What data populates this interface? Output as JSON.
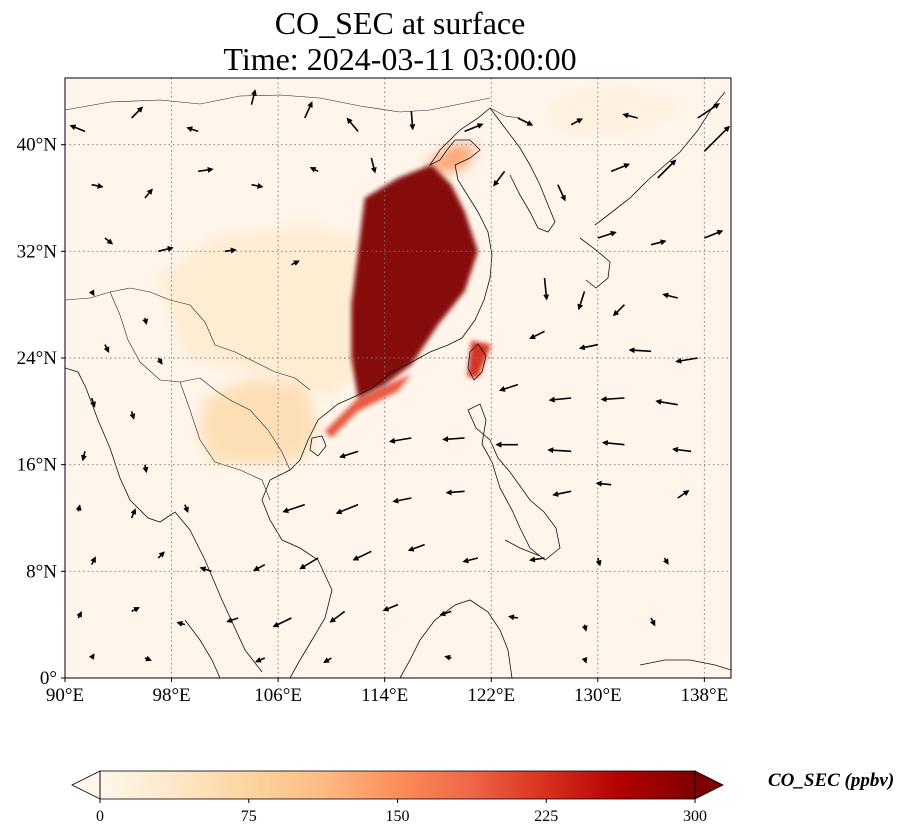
{
  "title": {
    "line1": "CO_SEC at surface",
    "line2": "Time: 2024-03-11 03:00:00"
  },
  "map": {
    "lon_range": [
      90,
      140
    ],
    "lat_range": [
      0,
      45
    ],
    "lon_ticks": [
      {
        "value": 90,
        "label": "90°E"
      },
      {
        "value": 98,
        "label": "98°E"
      },
      {
        "value": 106,
        "label": "106°E"
      },
      {
        "value": 114,
        "label": "114°E"
      },
      {
        "value": 122,
        "label": "122°E"
      },
      {
        "value": 130,
        "label": "130°E"
      },
      {
        "value": 138,
        "label": "138°E"
      }
    ],
    "lat_ticks": [
      {
        "value": 0,
        "label": "0°"
      },
      {
        "value": 8,
        "label": "8°N"
      },
      {
        "value": 16,
        "label": "16°N"
      },
      {
        "value": 24,
        "label": "24°N"
      },
      {
        "value": 32,
        "label": "32°N"
      },
      {
        "value": 40,
        "label": "40°N"
      }
    ],
    "gridlines": "dotted",
    "field_background": "#fff5eb"
  },
  "colorbar": {
    "label": "CO_SEC (ppbv)",
    "ticks": [
      {
        "value": 0,
        "label": "0"
      },
      {
        "value": 75,
        "label": "75"
      },
      {
        "value": 150,
        "label": "150"
      },
      {
        "value": 225,
        "label": "225"
      },
      {
        "value": 300,
        "label": "300"
      }
    ],
    "range": [
      0,
      300
    ],
    "extend": "both",
    "colormap": "OrRd",
    "colors": [
      "#fff7ec",
      "#fee8c8",
      "#fdd49e",
      "#fdbb84",
      "#fc8d59",
      "#ef6548",
      "#d7301f",
      "#b30000",
      "#7f0000"
    ]
  },
  "plumes": [
    {
      "name": "east-china-core",
      "value": 300,
      "points": [
        [
          112.5,
          36
        ],
        [
          115,
          37.5
        ],
        [
          117.5,
          38.5
        ],
        [
          119,
          37
        ],
        [
          120,
          35
        ],
        [
          121,
          32
        ],
        [
          120,
          29
        ],
        [
          118,
          26.5
        ],
        [
          116,
          23.5
        ],
        [
          114,
          22
        ],
        [
          112,
          21
        ],
        [
          111.5,
          24
        ],
        [
          111.5,
          28
        ],
        [
          112,
          32
        ]
      ]
    },
    {
      "name": "taiwan",
      "value": 230,
      "points": [
        [
          120.5,
          25.3
        ],
        [
          122,
          25
        ],
        [
          121,
          22.5
        ],
        [
          120.2,
          22.6
        ]
      ]
    },
    {
      "name": "north-plume",
      "value": 140,
      "points": [
        [
          117,
          38.5
        ],
        [
          119,
          40
        ],
        [
          121,
          40
        ],
        [
          120,
          38.2
        ],
        [
          118,
          37.8
        ]
      ]
    },
    {
      "name": "south-coast",
      "value": 200,
      "points": [
        [
          109.5,
          18.5
        ],
        [
          112,
          21
        ],
        [
          116,
          22.8
        ],
        [
          115,
          21.5
        ],
        [
          112,
          20
        ],
        [
          110,
          18
        ]
      ]
    },
    {
      "name": "indochina",
      "value": 60,
      "points": [
        [
          100.5,
          21
        ],
        [
          104,
          22.5
        ],
        [
          108,
          22
        ],
        [
          109,
          19
        ],
        [
          108,
          16.5
        ],
        [
          105,
          16
        ],
        [
          101,
          16.2
        ],
        [
          100,
          18.5
        ]
      ]
    },
    {
      "name": "south-china",
      "value": 30,
      "points": [
        [
          97,
          30
        ],
        [
          101,
          33
        ],
        [
          108,
          34
        ],
        [
          112,
          33
        ],
        [
          113,
          24
        ],
        [
          110,
          21
        ],
        [
          104,
          23
        ],
        [
          99,
          24
        ]
      ]
    },
    {
      "name": "japan-sea",
      "value": 15,
      "points": [
        [
          126,
          43
        ],
        [
          130,
          44.5
        ],
        [
          137,
          43
        ],
        [
          133,
          41
        ],
        [
          127,
          41
        ]
      ]
    }
  ],
  "wind_vectors": [
    {
      "lon": 91.5,
      "lat": 41,
      "u": -2.0,
      "v": 0.8
    },
    {
      "lon": 95,
      "lat": 42,
      "u": 1.5,
      "v": 1.5
    },
    {
      "lon": 100,
      "lat": 41,
      "u": -1.5,
      "v": 0.5
    },
    {
      "lon": 104,
      "lat": 43,
      "u": 0.5,
      "v": 2.0
    },
    {
      "lon": 108,
      "lat": 42,
      "u": 1.0,
      "v": 2.2
    },
    {
      "lon": 112,
      "lat": 41,
      "u": -1.5,
      "v": 1.8
    },
    {
      "lon": 116,
      "lat": 42.5,
      "u": 0.2,
      "v": -2.5
    },
    {
      "lon": 120,
      "lat": 41,
      "u": 2.5,
      "v": 1.0
    },
    {
      "lon": 124,
      "lat": 42,
      "u": 2.0,
      "v": -1.0
    },
    {
      "lon": 128,
      "lat": 41.5,
      "u": 1.5,
      "v": 0.8
    },
    {
      "lon": 133,
      "lat": 42,
      "u": -2.0,
      "v": 0.5
    },
    {
      "lon": 137.5,
      "lat": 42,
      "u": 3.0,
      "v": 2.0
    },
    {
      "lon": 138,
      "lat": 39.5,
      "u": 3.5,
      "v": 3.5
    },
    {
      "lon": 92,
      "lat": 37,
      "u": 1.5,
      "v": -0.3
    },
    {
      "lon": 96,
      "lat": 36,
      "u": 1.0,
      "v": 1.2
    },
    {
      "lon": 100,
      "lat": 38,
      "u": 2.0,
      "v": 0.3
    },
    {
      "lon": 104,
      "lat": 37,
      "u": 1.5,
      "v": -0.3
    },
    {
      "lon": 109,
      "lat": 38,
      "u": -1.0,
      "v": 0.5
    },
    {
      "lon": 113,
      "lat": 39,
      "u": 0.5,
      "v": -2.0
    },
    {
      "lon": 123,
      "lat": 38,
      "u": -1.5,
      "v": -2.0
    },
    {
      "lon": 127,
      "lat": 37,
      "u": 1.0,
      "v": -2.2
    },
    {
      "lon": 131,
      "lat": 38,
      "u": 2.5,
      "v": 1.0
    },
    {
      "lon": 134.5,
      "lat": 37.5,
      "u": 2.5,
      "v": 2.5
    },
    {
      "lon": 93,
      "lat": 33,
      "u": 1.0,
      "v": -0.8
    },
    {
      "lon": 97,
      "lat": 32,
      "u": 2.0,
      "v": 0.5
    },
    {
      "lon": 102,
      "lat": 32,
      "u": 1.5,
      "v": 0.2
    },
    {
      "lon": 107,
      "lat": 31,
      "u": 1.0,
      "v": 0.5
    },
    {
      "lon": 130,
      "lat": 33,
      "u": 2.5,
      "v": 0.8
    },
    {
      "lon": 134,
      "lat": 32.5,
      "u": 2.0,
      "v": 0.5
    },
    {
      "lon": 138,
      "lat": 33,
      "u": 2.5,
      "v": 1.0
    },
    {
      "lon": 92,
      "lat": 29,
      "u": 0.3,
      "v": -0.5
    },
    {
      "lon": 96,
      "lat": 27,
      "u": 0.2,
      "v": -0.8
    },
    {
      "lon": 126,
      "lat": 30,
      "u": 0.3,
      "v": -3.0
    },
    {
      "lon": 129,
      "lat": 29,
      "u": -0.8,
      "v": -2.5
    },
    {
      "lon": 132,
      "lat": 28,
      "u": -1.5,
      "v": -1.5
    },
    {
      "lon": 136,
      "lat": 28.5,
      "u": -2.0,
      "v": 0.5
    },
    {
      "lon": 93,
      "lat": 25,
      "u": 0.5,
      "v": -1.0
    },
    {
      "lon": 97,
      "lat": 24,
      "u": 0.5,
      "v": -0.8
    },
    {
      "lon": 126,
      "lat": 26,
      "u": -2.0,
      "v": -1.0
    },
    {
      "lon": 130,
      "lat": 25,
      "u": -2.5,
      "v": -0.5
    },
    {
      "lon": 134,
      "lat": 24.5,
      "u": -3.0,
      "v": 0.2
    },
    {
      "lon": 137.5,
      "lat": 24,
      "u": -3.0,
      "v": -0.5
    },
    {
      "lon": 92,
      "lat": 21,
      "u": 0.4,
      "v": -1.2
    },
    {
      "lon": 95,
      "lat": 20,
      "u": 0.3,
      "v": -1.0
    },
    {
      "lon": 124,
      "lat": 22,
      "u": -2.5,
      "v": -0.8
    },
    {
      "lon": 128,
      "lat": 21,
      "u": -3.0,
      "v": -0.3
    },
    {
      "lon": 132,
      "lat": 21,
      "u": -3.2,
      "v": -0.2
    },
    {
      "lon": 136,
      "lat": 20.5,
      "u": -3.0,
      "v": 0.5
    },
    {
      "lon": 91.5,
      "lat": 17,
      "u": -0.3,
      "v": -1.2
    },
    {
      "lon": 96,
      "lat": 16,
      "u": 0.2,
      "v": -1.0
    },
    {
      "lon": 112,
      "lat": 17,
      "u": -2.5,
      "v": -0.8
    },
    {
      "lon": 116,
      "lat": 18,
      "u": -3.0,
      "v": -0.5
    },
    {
      "lon": 120,
      "lat": 18,
      "u": -3.0,
      "v": -0.2
    },
    {
      "lon": 124,
      "lat": 17.5,
      "u": -3.0,
      "v": 0.0
    },
    {
      "lon": 128,
      "lat": 17,
      "u": -3.2,
      "v": 0.2
    },
    {
      "lon": 132,
      "lat": 17.5,
      "u": -3.0,
      "v": 0.3
    },
    {
      "lon": 137,
      "lat": 17,
      "u": -2.5,
      "v": 0.3
    },
    {
      "lon": 91,
      "lat": 12.5,
      "u": 0.2,
      "v": 0.8
    },
    {
      "lon": 95,
      "lat": 12,
      "u": 0.5,
      "v": 1.2
    },
    {
      "lon": 99,
      "lat": 13,
      "u": 0.4,
      "v": -1.0
    },
    {
      "lon": 108,
      "lat": 13,
      "u": -3.0,
      "v": -1.0
    },
    {
      "lon": 112,
      "lat": 13,
      "u": -3.0,
      "v": -1.2
    },
    {
      "lon": 116,
      "lat": 13.5,
      "u": -2.5,
      "v": -0.5
    },
    {
      "lon": 120,
      "lat": 14,
      "u": -2.5,
      "v": -0.2
    },
    {
      "lon": 128,
      "lat": 14,
      "u": -2.5,
      "v": -0.5
    },
    {
      "lon": 131,
      "lat": 14.5,
      "u": -2.0,
      "v": 0.2
    },
    {
      "lon": 136,
      "lat": 13.5,
      "u": 1.5,
      "v": 1.0
    },
    {
      "lon": 92,
      "lat": 8.5,
      "u": 0.5,
      "v": 1.0
    },
    {
      "lon": 97,
      "lat": 9,
      "u": 0.8,
      "v": 0.8
    },
    {
      "lon": 101,
      "lat": 8,
      "u": -1.5,
      "v": 0.5
    },
    {
      "lon": 105,
      "lat": 8.5,
      "u": -1.5,
      "v": -0.8
    },
    {
      "lon": 109,
      "lat": 9,
      "u": -2.5,
      "v": -1.5
    },
    {
      "lon": 113,
      "lat": 9.5,
      "u": -2.5,
      "v": -1.2
    },
    {
      "lon": 117,
      "lat": 10,
      "u": -2.2,
      "v": -0.8
    },
    {
      "lon": 121,
      "lat": 9,
      "u": -2.0,
      "v": -0.5
    },
    {
      "lon": 126,
      "lat": 9,
      "u": -2.0,
      "v": -0.3
    },
    {
      "lon": 130,
      "lat": 9,
      "u": 0.3,
      "v": -1.0
    },
    {
      "lon": 135,
      "lat": 9,
      "u": 0.5,
      "v": -0.8
    },
    {
      "lon": 91,
      "lat": 4.5,
      "u": 0.4,
      "v": 0.8
    },
    {
      "lon": 95,
      "lat": 5,
      "u": 1.0,
      "v": 0.5
    },
    {
      "lon": 99,
      "lat": 4,
      "u": -1.0,
      "v": 0.3
    },
    {
      "lon": 103,
      "lat": 4.5,
      "u": -1.5,
      "v": -0.5
    },
    {
      "lon": 107,
      "lat": 4.5,
      "u": -2.5,
      "v": -1.2
    },
    {
      "lon": 111,
      "lat": 5,
      "u": -2.0,
      "v": -1.5
    },
    {
      "lon": 115,
      "lat": 5.5,
      "u": -2.0,
      "v": -0.8
    },
    {
      "lon": 119,
      "lat": 5,
      "u": -1.5,
      "v": -0.5
    },
    {
      "lon": 124,
      "lat": 4.5,
      "u": -1.2,
      "v": 0.2
    },
    {
      "lon": 129,
      "lat": 4,
      "u": 0.2,
      "v": -0.8
    },
    {
      "lon": 134,
      "lat": 4.5,
      "u": 0.5,
      "v": -1.0
    },
    {
      "lon": 92,
      "lat": 1.5,
      "u": 0.3,
      "v": 0.5
    },
    {
      "lon": 96,
      "lat": 1.5,
      "u": 0.8,
      "v": -0.3
    },
    {
      "lon": 105,
      "lat": 1.5,
      "u": -1.2,
      "v": -0.5
    },
    {
      "lon": 110,
      "lat": 1.5,
      "u": -1.0,
      "v": -0.6
    },
    {
      "lon": 119,
      "lat": 1.5,
      "u": -0.8,
      "v": 0.2
    },
    {
      "lon": 129,
      "lat": 1.5,
      "u": 0.2,
      "v": -0.6
    }
  ]
}
